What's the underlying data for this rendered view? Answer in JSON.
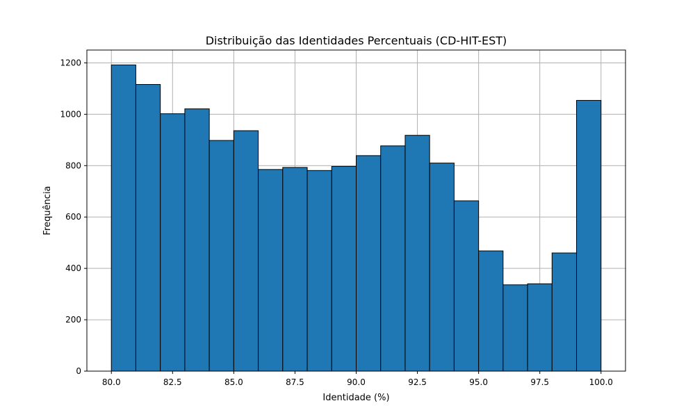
{
  "chart_data": {
    "type": "bar",
    "title": "Distribuição das Identidades Percentuais (CD-HIT-EST)",
    "xlabel": "Identidade (%)",
    "ylabel": "Frequência",
    "bin_edges": [
      80,
      81,
      82,
      83,
      84,
      85,
      86,
      87,
      88,
      89,
      90,
      91,
      92,
      93,
      94,
      95,
      96,
      97,
      98,
      99,
      100
    ],
    "values": [
      1192,
      1116,
      1002,
      1021,
      898,
      936,
      785,
      793,
      781,
      797,
      839,
      877,
      918,
      810,
      663,
      468,
      336,
      340,
      460,
      1054
    ],
    "xlim": [
      79.0,
      101.0
    ],
    "ylim": [
      0,
      1250
    ],
    "xticks": [
      80.0,
      82.5,
      85.0,
      87.5,
      90.0,
      92.5,
      95.0,
      97.5,
      100.0
    ],
    "xtick_labels": [
      "80.0",
      "82.5",
      "85.0",
      "87.5",
      "90.0",
      "92.5",
      "95.0",
      "97.5",
      "100.0"
    ],
    "yticks": [
      0,
      200,
      400,
      600,
      800,
      1000,
      1200
    ],
    "ytick_labels": [
      "0",
      "200",
      "400",
      "600",
      "800",
      "1000",
      "1200"
    ],
    "grid": true,
    "colors": {
      "bar_fill": "#1f77b4",
      "bar_edge": "#000000",
      "grid": "#b0b0b0",
      "axis": "#000000"
    }
  }
}
